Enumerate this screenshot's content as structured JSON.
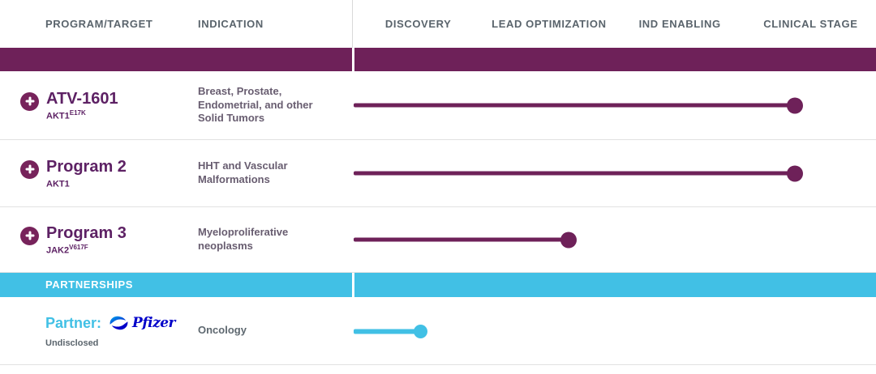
{
  "colors": {
    "purple": "#6E2159",
    "cyan": "#41C0E5",
    "pfizer_blue": "#0000C9"
  },
  "header": {
    "program_target": "PROGRAM/TARGET",
    "indication": "INDICATION",
    "stages": [
      "DISCOVERY",
      "LEAD OPTIMIZATION",
      "IND ENABLING",
      "CLINICAL STAGE"
    ]
  },
  "programs": [
    {
      "name": "ATV-1601",
      "target": "AKT1",
      "target_sup": "E17K",
      "indication": "Breast, Prostate, Endometrial, and other Solid Tumors",
      "stage_reached": "CLINICAL STAGE",
      "progress_pct": 86
    },
    {
      "name": "Program 2",
      "target": "AKT1",
      "target_sup": "",
      "indication": "HHT and Vascular Malformations",
      "stage_reached": "CLINICAL STAGE",
      "progress_pct": 86
    },
    {
      "name": "Program 3",
      "target": "JAK2",
      "target_sup": "V617F",
      "indication": "Myeloproliferative neoplasms",
      "stage_reached": "LEAD OPTIMIZATION",
      "progress_pct": 42
    }
  ],
  "partnerships": {
    "section_label": "PARTNERSHIPS",
    "partner_label": "Partner:",
    "partner_logo_text": "Pfizer",
    "target": "Undisclosed",
    "indication": "Oncology",
    "stage_reached": "DISCOVERY",
    "progress_pct": 13
  }
}
